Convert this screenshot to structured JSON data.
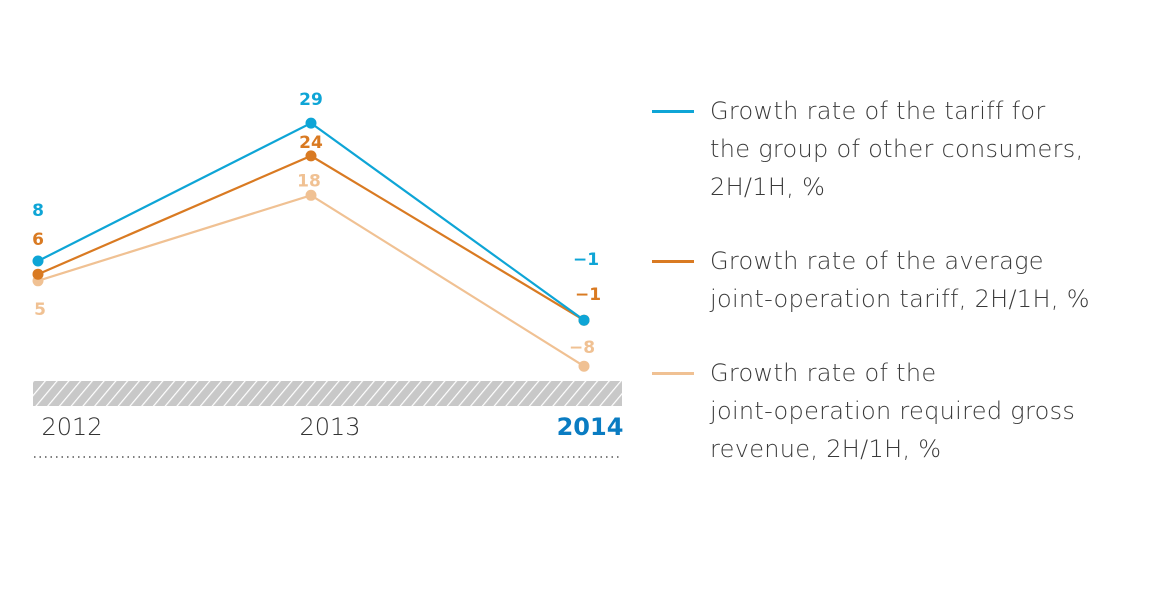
{
  "chart_data": {
    "type": "line",
    "title": "",
    "xlabel": "",
    "ylabel": "",
    "categories": [
      "2012",
      "2013",
      "2014"
    ],
    "highlighted_category": "2014",
    "ylim": [
      -8,
      29
    ],
    "grid": false,
    "legend_position": "right",
    "series": [
      {
        "name": "Growth rate of the tariff for\nthe group of other consumers,\n2H/1H, %",
        "color": "#0ea5d6",
        "values": [
          8,
          29,
          -1
        ],
        "labels": [
          "8",
          "29",
          "−1"
        ]
      },
      {
        "name": "Growth rate of the average\njoint-operation tariff, 2H/1H, %",
        "color": "#d97a22",
        "values": [
          6,
          24,
          -1
        ],
        "labels": [
          "6",
          "24",
          "−1"
        ]
      },
      {
        "name": "Growth rate of the\njoint-operation required gross\nrevenue, 2H/1H, %",
        "color": "#f0c193",
        "values": [
          5,
          18,
          -8
        ],
        "labels": [
          "5",
          "18",
          "−8"
        ]
      }
    ]
  },
  "colors": {
    "axis_label": "#333333",
    "axis_label_highlight": "#0a7cc2",
    "hatch_bg": "#c8c8c8",
    "hatch_line": "#ffffff",
    "dotted_rule": "#555555"
  }
}
